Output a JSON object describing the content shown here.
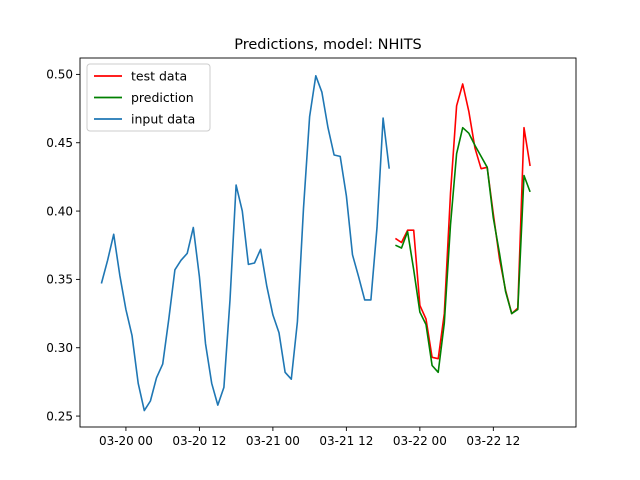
{
  "chart_data": {
    "type": "line",
    "title": "Predictions, model: NHITS",
    "xlabel": "",
    "ylabel": "",
    "x_unit": "hours",
    "x_range": [
      -7.5,
      73.5
    ],
    "ylim": [
      0.242,
      0.512
    ],
    "grid": false,
    "legend_position": "top-left",
    "x_ticks": [
      {
        "value": 0,
        "label": "03-20 00"
      },
      {
        "value": 12,
        "label": "03-20 12"
      },
      {
        "value": 24,
        "label": "03-21 00"
      },
      {
        "value": 36,
        "label": "03-21 12"
      },
      {
        "value": 48,
        "label": "03-22 00"
      },
      {
        "value": 60,
        "label": "03-22 12"
      }
    ],
    "y_ticks": [
      {
        "value": 0.25,
        "label": "0.25"
      },
      {
        "value": 0.3,
        "label": "0.30"
      },
      {
        "value": 0.35,
        "label": "0.35"
      },
      {
        "value": 0.4,
        "label": "0.40"
      },
      {
        "value": 0.45,
        "label": "0.45"
      },
      {
        "value": 0.5,
        "label": "0.50"
      }
    ],
    "series": [
      {
        "name": "test data",
        "color": "#ff0000",
        "x": [
          44,
          45,
          46,
          47,
          48,
          49,
          50,
          51,
          52,
          53,
          54,
          55,
          56,
          57,
          58,
          59,
          60,
          61,
          62,
          63,
          64,
          65,
          66
        ],
        "y": [
          0.38,
          0.377,
          0.386,
          0.386,
          0.331,
          0.321,
          0.293,
          0.292,
          0.325,
          0.413,
          0.477,
          0.493,
          0.473,
          0.446,
          0.431,
          0.432,
          0.398,
          0.365,
          0.342,
          0.325,
          0.329,
          0.461,
          0.433
        ]
      },
      {
        "name": "prediction",
        "color": "#008000",
        "x": [
          44,
          45,
          46,
          47,
          48,
          49,
          50,
          51,
          52,
          53,
          54,
          55,
          56,
          57,
          58,
          59,
          60,
          61,
          62,
          63,
          64,
          65,
          66
        ],
        "y": [
          0.375,
          0.373,
          0.385,
          0.357,
          0.326,
          0.317,
          0.287,
          0.282,
          0.318,
          0.39,
          0.442,
          0.461,
          0.457,
          0.448,
          0.44,
          0.432,
          0.395,
          0.369,
          0.341,
          0.325,
          0.328,
          0.426,
          0.414
        ]
      },
      {
        "name": "input data",
        "color": "#1f77b4",
        "x": [
          -4,
          -3,
          -2,
          -1,
          0,
          1,
          2,
          3,
          4,
          5,
          6,
          7,
          8,
          9,
          10,
          11,
          12,
          13,
          14,
          15,
          16,
          17,
          18,
          19,
          20,
          21,
          22,
          23,
          24,
          25,
          26,
          27,
          28,
          29,
          30,
          31,
          32,
          33,
          34,
          35,
          36,
          37,
          38,
          39,
          40,
          41,
          42,
          43
        ],
        "y": [
          0.347,
          0.364,
          0.383,
          0.353,
          0.328,
          0.309,
          0.274,
          0.254,
          0.261,
          0.278,
          0.288,
          0.321,
          0.357,
          0.364,
          0.369,
          0.388,
          0.352,
          0.303,
          0.274,
          0.258,
          0.271,
          0.335,
          0.419,
          0.4,
          0.361,
          0.362,
          0.372,
          0.345,
          0.324,
          0.311,
          0.282,
          0.277,
          0.319,
          0.402,
          0.469,
          0.499,
          0.487,
          0.461,
          0.441,
          0.44,
          0.411,
          0.368,
          0.352,
          0.335,
          0.335,
          0.388,
          0.468,
          0.431
        ]
      }
    ]
  }
}
